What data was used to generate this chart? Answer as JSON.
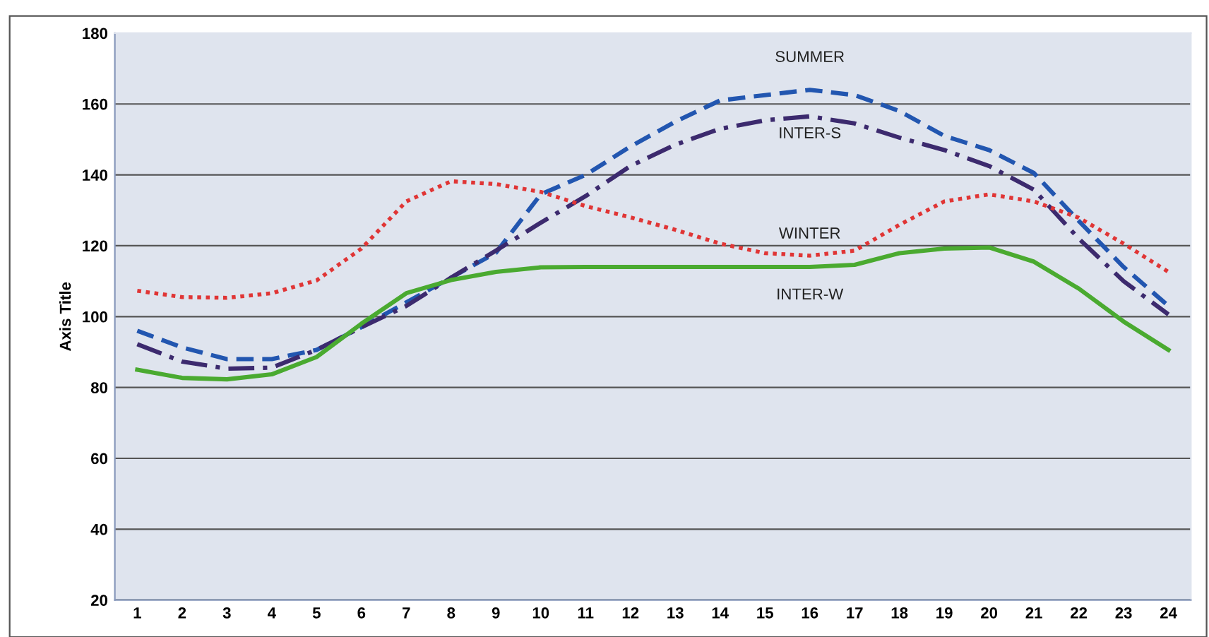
{
  "chart_data": {
    "type": "line",
    "ylabel": "Axis Title",
    "categories": [
      "1",
      "2",
      "3",
      "4",
      "5",
      "6",
      "7",
      "8",
      "9",
      "10",
      "11",
      "12",
      "13",
      "14",
      "15",
      "16",
      "17",
      "18",
      "19",
      "20",
      "21",
      "22",
      "23",
      "24"
    ],
    "series": [
      {
        "name": "SUMMER",
        "color": "#2256b0",
        "line_style": "dashed",
        "values": [
          96,
          91.3,
          88,
          88,
          90.6,
          97,
          104,
          111,
          118,
          134.5,
          140,
          148,
          155,
          161,
          162.5,
          164,
          162.5,
          158,
          151,
          147,
          140.5,
          127,
          114,
          103
        ]
      },
      {
        "name": "INTER-S",
        "color": "#3c2a6e",
        "line_style": "dashdot",
        "values": [
          92.2,
          87.3,
          85.3,
          85.6,
          90.6,
          97,
          103,
          111,
          118.6,
          126.5,
          134,
          142.5,
          148.5,
          153,
          155.4,
          156.5,
          154.5,
          150.5,
          147,
          142.5,
          135.8,
          122,
          110,
          100.6
        ]
      },
      {
        "name": "WINTER",
        "color": "#e03535",
        "line_style": "dotted",
        "values": [
          107.3,
          105.5,
          105.3,
          106.6,
          110.2,
          119.2,
          132.5,
          138.2,
          137.4,
          135.2,
          131.2,
          128,
          124.5,
          120.6,
          117.9,
          117.2,
          118.6,
          125.9,
          132.5,
          134.5,
          132.5,
          127.9,
          120.6,
          112.6
        ]
      },
      {
        "name": "INTER-W",
        "color": "#4aaa30",
        "line_style": "solid",
        "values": [
          85,
          82.7,
          82.3,
          83.7,
          88.6,
          98,
          106.6,
          110.3,
          112.6,
          113.9,
          114,
          114,
          114,
          114,
          114,
          114,
          114.6,
          117.9,
          119.2,
          119.5,
          115.5,
          107.9,
          98.6,
          90.6
        ]
      }
    ],
    "ylim": [
      20,
      180
    ],
    "yticks": [
      20,
      40,
      60,
      80,
      100,
      120,
      140,
      160,
      180
    ],
    "grid": "y",
    "legend": false,
    "marker": "none"
  }
}
